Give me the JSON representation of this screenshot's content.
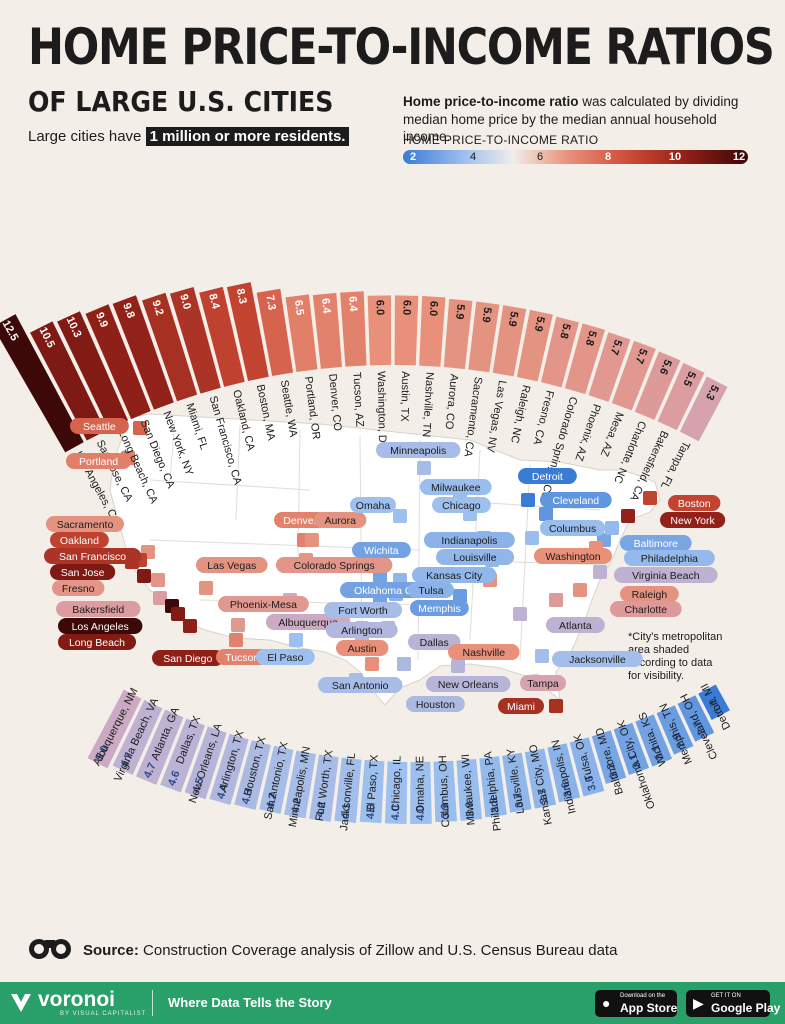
{
  "header": {
    "title": "HOME PRICE-TO-INCOME RATIOS",
    "subtitle": "OF LARGE U.S. CITIES",
    "note_before": "Large cities have ",
    "note_highlight": "1 million or more residents.",
    "desc_bold": "Home price-to-income ratio",
    "desc_rest": " was calculated by dividing median home price by the median annual household income.",
    "legend_title": "HOME PRICE-TO-INCOME RATIO",
    "legend_ticks": [
      "2",
      "4",
      "6",
      "8",
      "10",
      "12"
    ]
  },
  "colors": {
    "low": "#3a7bd5",
    "mid": "#f1ede8",
    "high": "#3c0808",
    "footer": "#29a06a"
  },
  "chart_data": [
    {
      "type": "bar",
      "title": "",
      "categories": [
        "Los Angeles, CA",
        "San Jose, CA",
        "Long Beach, CA",
        "San Diego, CA",
        "New York, NY",
        "Miami, FL",
        "San Francisco, CA",
        "Oakland, CA",
        "Boston, MA",
        "Seattle, WA",
        "Portland, OR",
        "Denver, CO",
        "Tucson, AZ",
        "Washington, DC",
        "Austin, TX",
        "Nashville, TN",
        "Aurora, CO",
        "Sacramento, CA",
        "Las Vegas, NV",
        "Raleigh, NC",
        "Fresno, CA",
        "Colorado Springs, CO",
        "Phoenix, AZ",
        "Mesa, AZ",
        "Charlotte, NC",
        "Bakersfield, CA",
        "Tampa, FL"
      ],
      "values": [
        12.5,
        10.5,
        10.3,
        9.9,
        9.8,
        9.2,
        9.0,
        8.4,
        8.3,
        7.3,
        6.5,
        6.4,
        6.4,
        6.0,
        6.0,
        6.0,
        5.9,
        5.9,
        5.9,
        5.9,
        5.8,
        5.8,
        5.7,
        5.7,
        5.6,
        5.5,
        5.3
      ],
      "value_labels": [
        "12.5",
        "10.5",
        "10.3",
        "9.9",
        "9.8",
        "9.2",
        "9.0",
        "8.4",
        "8.3",
        "7.3",
        "6.5",
        "6.4",
        "6.4",
        "6.0",
        "6.0",
        "6.0",
        "5.9",
        "5.9",
        "5.9",
        "5.9",
        "5.8",
        "5.8",
        "5.7",
        "5.7",
        "5.6",
        "5.5",
        "5.3"
      ]
    },
    {
      "type": "bar",
      "title": "",
      "categories": [
        "Detroit, MI",
        "Cleveland, OH",
        "Memphis, TN",
        "Wichita, KS",
        "Oklahoma City, OK",
        "Baltimore, MD",
        "Tulsa, OK",
        "Indianapolis, IN",
        "Kansas City, MO",
        "Louisville, KY",
        "Philadelphia, PA",
        "Milwaukee, WI",
        "Columbus, OH",
        "Omaha, NE",
        "Chicago, IL",
        "El Paso, TX",
        "Jacksonville, FL",
        "Fort Worth, TX",
        "Minneapolis, MN",
        "San Antonio, TX",
        "Houston, TX",
        "Arlington, TX",
        "New Orleans, LA",
        "Dallas, TX",
        "Atlanta, GA",
        "Virginia Beach, VA",
        "Albuquerque, NM"
      ],
      "values": [
        1.9,
        2.7,
        2.9,
        3.1,
        3.1,
        3.2,
        3.6,
        3.6,
        3.7,
        3.7,
        3.8,
        3.9,
        3.9,
        4.0,
        4.0,
        4.0,
        4.1,
        4.2,
        4.2,
        4.2,
        4.3,
        4.4,
        4.5,
        4.6,
        4.7,
        4.7,
        5.0
      ],
      "value_labels": [
        "1.9",
        "2.7",
        "2.9",
        "3.1",
        "3.1",
        "3.2",
        "3.6",
        "3.6",
        "3.7",
        "3.7",
        "3.8",
        "3.9",
        "3.9",
        "4.0",
        "4.0",
        "4.0",
        "4.1",
        "4.2",
        "4.2",
        "4.2",
        "4.3",
        "4.4",
        "4.5",
        "4.6",
        "4.7",
        "4.7",
        "5.0"
      ]
    }
  ],
  "map": {
    "footnote": "*City's metropolitan area shaded according to data for visibility.",
    "labels": [
      {
        "name": "Seattle",
        "v": 7.3
      },
      {
        "name": "Portland",
        "v": 6.5
      },
      {
        "name": "Sacramento",
        "v": 5.9
      },
      {
        "name": "Oakland",
        "v": 8.4
      },
      {
        "name": "San Francisco",
        "v": 9.0
      },
      {
        "name": "San Jose",
        "v": 10.5
      },
      {
        "name": "Fresno",
        "v": 5.8
      },
      {
        "name": "Bakersfield",
        "v": 5.5
      },
      {
        "name": "Los Angeles",
        "v": 12.5
      },
      {
        "name": "Long Beach",
        "v": 10.3
      },
      {
        "name": "San Diego",
        "v": 9.9
      },
      {
        "name": "Las Vegas",
        "v": 5.9
      },
      {
        "name": "Phoenix-Mesa",
        "v": 5.7
      },
      {
        "name": "Tucson",
        "v": 6.4
      },
      {
        "name": "El Paso",
        "v": 4.0
      },
      {
        "name": "Albuquerque",
        "v": 5.0
      },
      {
        "name": "Denver",
        "v": 6.4
      },
      {
        "name": "Aurora",
        "v": 5.9
      },
      {
        "name": "Colorado Springs",
        "v": 5.8
      },
      {
        "name": "Wichita",
        "v": 3.1
      },
      {
        "name": "Oklahoma City",
        "v": 3.1
      },
      {
        "name": "Fort Worth",
        "v": 4.2
      },
      {
        "name": "Arlington",
        "v": 4.4
      },
      {
        "name": "Dallas",
        "v": 4.6
      },
      {
        "name": "Austin",
        "v": 6.0
      },
      {
        "name": "San Antonio",
        "v": 4.2
      },
      {
        "name": "Houston",
        "v": 4.3
      },
      {
        "name": "New Orleans",
        "v": 4.5
      },
      {
        "name": "Omaha",
        "v": 4.0
      },
      {
        "name": "Minneapolis",
        "v": 4.2
      },
      {
        "name": "Milwaukee",
        "v": 3.9
      },
      {
        "name": "Chicago",
        "v": 4.0
      },
      {
        "name": "Kansas City",
        "v": 3.7
      },
      {
        "name": "Tulsa",
        "v": 3.6
      },
      {
        "name": "Memphis",
        "v": 2.9
      },
      {
        "name": "Nashville",
        "v": 6.0
      },
      {
        "name": "Indianapolis",
        "v": 3.6
      },
      {
        "name": "Louisville",
        "v": 3.7
      },
      {
        "name": "Detroit",
        "v": 1.9
      },
      {
        "name": "Cleveland",
        "v": 2.7
      },
      {
        "name": "Columbus",
        "v": 3.9
      },
      {
        "name": "Boston",
        "v": 8.3
      },
      {
        "name": "New York",
        "v": 9.8
      },
      {
        "name": "Baltimore",
        "v": 3.2
      },
      {
        "name": "Philadelphia",
        "v": 3.8
      },
      {
        "name": "Washington",
        "v": 6.0
      },
      {
        "name": "Virginia Beach",
        "v": 4.7
      },
      {
        "name": "Raleigh",
        "v": 5.9
      },
      {
        "name": "Charlotte",
        "v": 5.6
      },
      {
        "name": "Atlanta",
        "v": 4.7
      },
      {
        "name": "Jacksonville",
        "v": 4.1
      },
      {
        "name": "Tampa",
        "v": 5.3
      },
      {
        "name": "Miami",
        "v": 9.2
      }
    ]
  },
  "source": {
    "label": "Source:",
    "text": " Construction Coverage analysis of Zillow and U.S. Census Bureau data"
  },
  "footer": {
    "brand": "voronoi",
    "brand_sub": "BY VISUAL CAPITALIST",
    "tagline": "Where Data Tells the Story",
    "appstore_small": "Download on the",
    "appstore_big": "App Store",
    "googleplay_small": "GET IT ON",
    "googleplay_big": "Google Play"
  }
}
